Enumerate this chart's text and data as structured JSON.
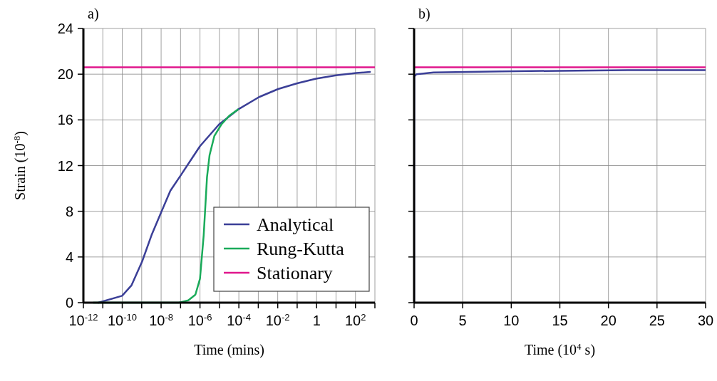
{
  "chart_data": [
    {
      "type": "line",
      "title": "a)",
      "xlabel": "Time (mins)",
      "ylabel": "Strain (10$^{-8}$)",
      "log": "x",
      "grid": true,
      "legend": "bottom right",
      "xlim": [
        1e-12,
        1000
      ],
      "ylim": [
        0,
        24
      ],
      "xticks": [
        {
          "value": 1e-12,
          "label": "10$^{-12}$"
        },
        {
          "value": 1e-11,
          "label": null
        },
        {
          "value": 1e-10,
          "label": "10$^{-10}$"
        },
        {
          "value": 1e-09,
          "label": null
        },
        {
          "value": 1e-08,
          "label": "10$^{-8}$"
        },
        {
          "value": 1e-07,
          "label": null
        },
        {
          "value": 1e-06,
          "label": "10$^{-6}$"
        },
        {
          "value": 1e-05,
          "label": null
        },
        {
          "value": 0.0001,
          "label": "10$^{-4}$"
        },
        {
          "value": 0.001,
          "label": null
        },
        {
          "value": 0.01,
          "label": "10$^{-2}$"
        },
        {
          "value": 0.1,
          "label": null
        },
        1,
        {
          "value": 10,
          "label": null
        },
        {
          "value": 100,
          "label": "10$^{2}$"
        },
        {
          "value": 1000,
          "label": null
        }
      ],
      "yticks": [
        0,
        4,
        8,
        12,
        16,
        20,
        24
      ],
      "series": [
        {
          "name": "Analytical",
          "color": "#3b3f97",
          "x": [
            5.9e-12,
            9.8e-11,
            2.95e-10,
            1.05e-09,
            3.2e-09,
            1e-08,
            3e-08,
            1.07e-07,
            1e-06,
            9.5e-06,
            8.9e-05,
            0.0011,
            0.0105,
            0.1,
            0.93,
            10,
            110,
            560
          ],
          "values": [
            0,
            0.6,
            1.5,
            3.6,
            5.9,
            7.9,
            9.8,
            11.2,
            13.7,
            15.6,
            16.9,
            18.0,
            18.7,
            19.2,
            19.6,
            19.9,
            20.1,
            20.2
          ]
        },
        {
          "name": "Rung-Kutta",
          "color": "#1aab5a",
          "x": [
            3.3e-12,
            8.1e-08,
            2.5e-07,
            5.8e-07,
            1e-06,
            1.55e-06,
            2.3e-06,
            3.1e-06,
            5.5e-06,
            1.26e-05,
            3.4e-05,
            8.9e-05
          ],
          "values": [
            0,
            0,
            0.2,
            0.7,
            2.1,
            5.9,
            11.0,
            12.9,
            14.6,
            15.6,
            16.4,
            16.9
          ]
        },
        {
          "name": "Stationary",
          "color": "#e0168c",
          "x": [
            1e-12,
            1000
          ],
          "values": [
            20.6,
            20.6
          ]
        }
      ]
    },
    {
      "type": "line",
      "title": "b)",
      "xlabel": "Time (10$^{4}$ s)",
      "grid": true,
      "tick_labels": "x",
      "xlim": [
        0,
        30
      ],
      "ylim": [
        0,
        24
      ],
      "xticks": [
        0,
        5,
        10,
        15,
        20,
        25,
        30
      ],
      "yticks": [
        0,
        4,
        8,
        12,
        16,
        20,
        24
      ],
      "series": [
        {
          "color": "#3b3f97",
          "x": [
            0,
            0,
            0.02,
            0.25,
            2,
            9,
            22,
            30
          ],
          "values": [
            0,
            10,
            19.8,
            20.0,
            20.15,
            20.25,
            20.35,
            20.35
          ]
        },
        {
          "color": "#e0168c",
          "x": [
            0,
            30
          ],
          "values": [
            20.6,
            20.6
          ]
        }
      ]
    }
  ]
}
